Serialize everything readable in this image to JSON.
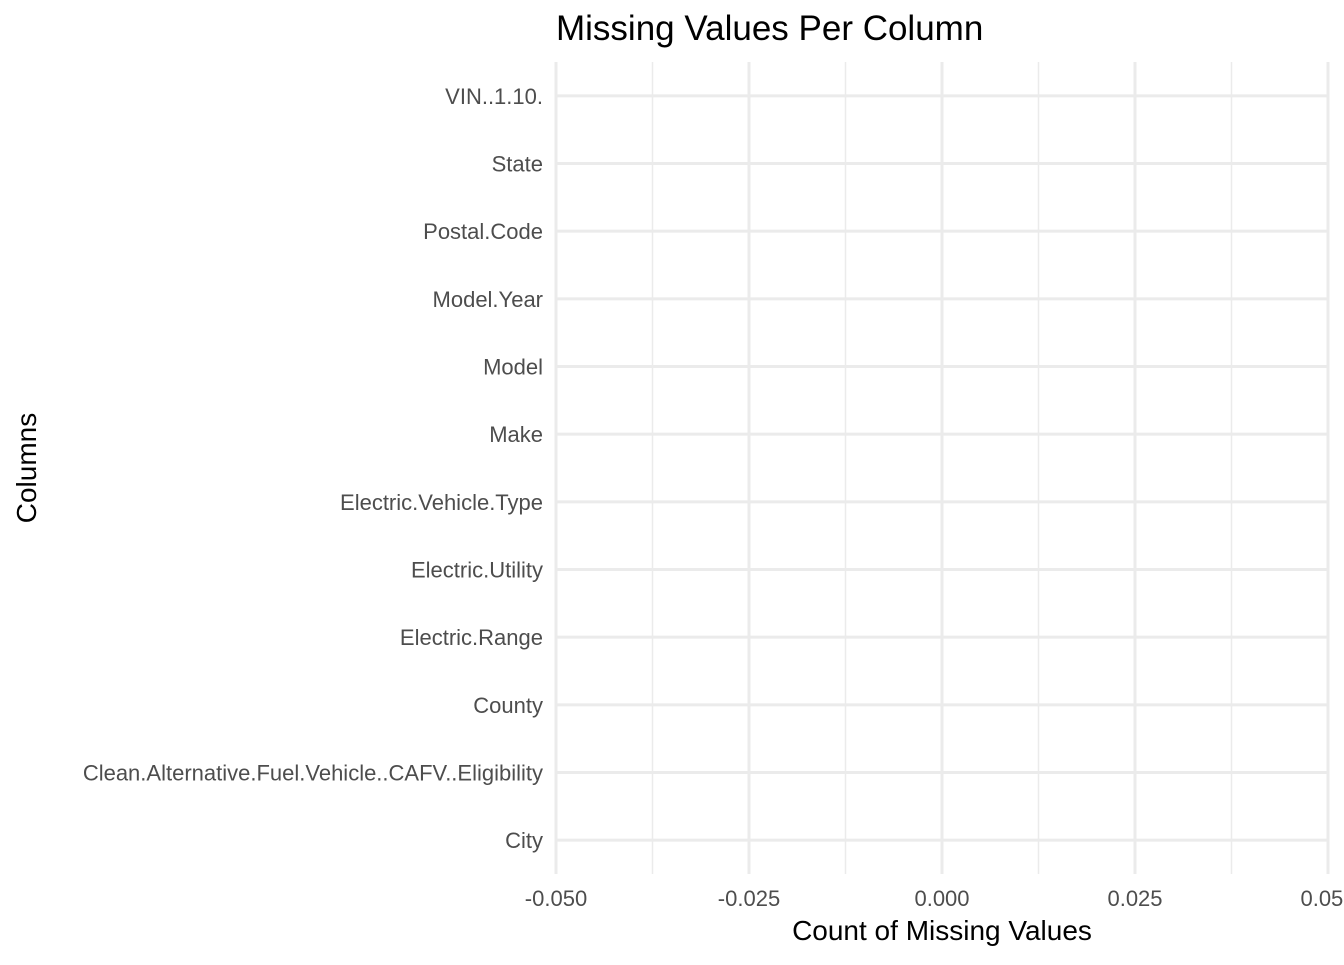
{
  "chart_data": {
    "type": "bar",
    "orientation": "horizontal",
    "title": "Missing Values Per Column",
    "xlabel": "Count of Missing Values",
    "ylabel": "Columns",
    "categories": [
      "City",
      "Clean.Alternative.Fuel.Vehicle..CAFV..Eligibility",
      "County",
      "Electric.Range",
      "Electric.Utility",
      "Electric.Vehicle.Type",
      "Make",
      "Model",
      "Model.Year",
      "Postal.Code",
      "State",
      "VIN..1.10."
    ],
    "values": [
      0,
      0,
      0,
      0,
      0,
      0,
      0,
      0,
      0,
      0,
      0,
      0
    ],
    "xlim": [
      -0.05,
      0.05
    ],
    "x_ticks": [
      -0.05,
      -0.025,
      0.0,
      0.025,
      0.05
    ],
    "x_tick_labels": [
      "-0.050",
      "-0.025",
      "0.000",
      "0.025",
      "0.050"
    ],
    "grid": true,
    "legend": "none",
    "colors": {
      "grid": "#ebebeb",
      "tick_text": "#4d4d4d",
      "title_text": "#000000",
      "bar": "#4682b4"
    }
  }
}
